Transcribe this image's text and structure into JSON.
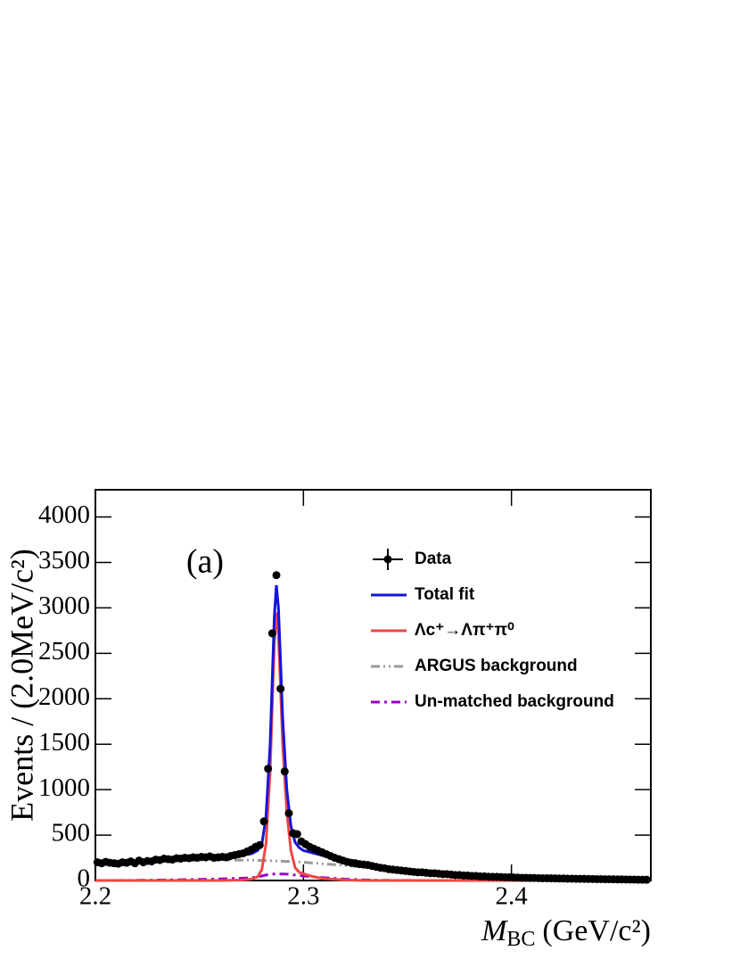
{
  "chart_data": {
    "type": "scatter",
    "annotation": "(a)",
    "y_label": "Events / (2.0MeV/c²)",
    "x_label": {
      "symbol": "M",
      "subscript": "BC",
      "unit": "(GeV/c²)"
    },
    "xlim": [
      2.2,
      2.467
    ],
    "ylim": [
      0,
      4300
    ],
    "xticks": [
      2.2,
      2.3,
      2.4
    ],
    "yticks": [
      0,
      500,
      1000,
      1500,
      2000,
      2500,
      3000,
      3500,
      4000
    ],
    "series": [
      {
        "name": "Data",
        "color": "#000000",
        "style": "points",
        "x": [
          2.201,
          2.203,
          2.205,
          2.207,
          2.209,
          2.211,
          2.213,
          2.215,
          2.217,
          2.219,
          2.221,
          2.223,
          2.225,
          2.227,
          2.229,
          2.231,
          2.233,
          2.235,
          2.237,
          2.239,
          2.241,
          2.243,
          2.245,
          2.247,
          2.249,
          2.251,
          2.253,
          2.255,
          2.257,
          2.259,
          2.261,
          2.263,
          2.265,
          2.267,
          2.269,
          2.271,
          2.273,
          2.275,
          2.277,
          2.279,
          2.281,
          2.283,
          2.285,
          2.287,
          2.289,
          2.291,
          2.293,
          2.295,
          2.297,
          2.299,
          2.301,
          2.303,
          2.305,
          2.307,
          2.309,
          2.311,
          2.313,
          2.315,
          2.317,
          2.319,
          2.321,
          2.323,
          2.325,
          2.327,
          2.329,
          2.331,
          2.333,
          2.335,
          2.337,
          2.339,
          2.341,
          2.343,
          2.345,
          2.347,
          2.349,
          2.351,
          2.353,
          2.355,
          2.357,
          2.359,
          2.361,
          2.363,
          2.365,
          2.367,
          2.369,
          2.371,
          2.373,
          2.375,
          2.377,
          2.379,
          2.381,
          2.383,
          2.385,
          2.387,
          2.389,
          2.391,
          2.393,
          2.395,
          2.397,
          2.399,
          2.401,
          2.403,
          2.405,
          2.407,
          2.409,
          2.411,
          2.413,
          2.415,
          2.417,
          2.419,
          2.421,
          2.423,
          2.425,
          2.427,
          2.429,
          2.431,
          2.433,
          2.435,
          2.437,
          2.439,
          2.441,
          2.443,
          2.445,
          2.447,
          2.449,
          2.451,
          2.453,
          2.455,
          2.457,
          2.459,
          2.461,
          2.463,
          2.465
        ],
        "values": [
          200,
          190,
          205,
          195,
          190,
          185,
          200,
          195,
          210,
          190,
          220,
          200,
          215,
          210,
          230,
          225,
          240,
          235,
          230,
          245,
          240,
          250,
          245,
          255,
          250,
          260,
          255,
          265,
          250,
          255,
          260,
          255,
          270,
          280,
          290,
          300,
          320,
          340,
          370,
          390,
          650,
          1230,
          2720,
          3360,
          2110,
          1200,
          740,
          520,
          510,
          430,
          400,
          370,
          350,
          330,
          310,
          290,
          270,
          250,
          235,
          220,
          205,
          195,
          190,
          180,
          175,
          170,
          160,
          150,
          140,
          135,
          125,
          120,
          115,
          110,
          105,
          100,
          95,
          90,
          90,
          85,
          80,
          80,
          75,
          70,
          70,
          65,
          60,
          60,
          55,
          55,
          50,
          50,
          45,
          45,
          42,
          40,
          40,
          38,
          35,
          35,
          33,
          32,
          30,
          30,
          28,
          28,
          26,
          25,
          25,
          24,
          23,
          22,
          22,
          20,
          20,
          19,
          18,
          18,
          17,
          16,
          15,
          15,
          14,
          14,
          13,
          12,
          12,
          11,
          10,
          10,
          9,
          8,
          8
        ]
      },
      {
        "name": "Total fit",
        "color": "#1414dc",
        "style": "solid",
        "x": [
          2.2,
          2.21,
          2.22,
          2.23,
          2.24,
          2.25,
          2.26,
          2.27,
          2.275,
          2.278,
          2.28,
          2.282,
          2.284,
          2.285,
          2.286,
          2.287,
          2.288,
          2.289,
          2.29,
          2.292,
          2.294,
          2.296,
          2.298,
          2.3,
          2.305,
          2.31,
          2.32,
          2.33,
          2.34,
          2.36,
          2.38,
          2.4,
          2.43,
          2.467
        ],
        "values": [
          195,
          205,
          215,
          230,
          240,
          250,
          260,
          275,
          295,
          330,
          400,
          700,
          1500,
          2200,
          2900,
          3250,
          3000,
          2400,
          1800,
          1000,
          600,
          420,
          360,
          330,
          300,
          270,
          220,
          175,
          140,
          95,
          60,
          35,
          15,
          3
        ]
      },
      {
        "name": "Λc⁺→Λπ⁺π⁰",
        "color": "#f04545",
        "style": "solid",
        "x": [
          2.2,
          2.21,
          2.22,
          2.23,
          2.24,
          2.25,
          2.26,
          2.27,
          2.275,
          2.278,
          2.28,
          2.282,
          2.284,
          2.285,
          2.286,
          2.287,
          2.288,
          2.289,
          2.29,
          2.292,
          2.294,
          2.296,
          2.298,
          2.3,
          2.305,
          2.31,
          2.32,
          2.33,
          2.34,
          2.36,
          2.38,
          2.4,
          2.43,
          2.467
        ],
        "values": [
          0,
          0,
          0,
          0,
          0,
          0,
          0,
          5,
          15,
          40,
          120,
          400,
          1200,
          1900,
          2600,
          2950,
          2700,
          2100,
          1500,
          750,
          330,
          140,
          90,
          75,
          40,
          20,
          5,
          0,
          0,
          0,
          0,
          0,
          0,
          0
        ]
      },
      {
        "name": "ARGUS background",
        "color": "#999999",
        "style": "dashdotdot",
        "x": [
          2.2,
          2.21,
          2.22,
          2.23,
          2.24,
          2.25,
          2.26,
          2.27,
          2.275,
          2.278,
          2.28,
          2.282,
          2.284,
          2.285,
          2.286,
          2.287,
          2.288,
          2.289,
          2.29,
          2.292,
          2.294,
          2.296,
          2.298,
          2.3,
          2.305,
          2.31,
          2.32,
          2.33,
          2.34,
          2.36,
          2.38,
          2.4,
          2.43,
          2.467
        ],
        "values": [
          190,
          200,
          210,
          218,
          222,
          225,
          226,
          225,
          224,
          222,
          221,
          220,
          218,
          217,
          216,
          215,
          214,
          213,
          212,
          210,
          208,
          205,
          203,
          200,
          192,
          183,
          165,
          145,
          125,
          90,
          58,
          32,
          12,
          0
        ]
      },
      {
        "name": "Un-matched background",
        "color": "#9900cc",
        "style": "dashdot",
        "x": [
          2.2,
          2.21,
          2.22,
          2.23,
          2.24,
          2.25,
          2.26,
          2.27,
          2.275,
          2.278,
          2.28,
          2.282,
          2.284,
          2.285,
          2.286,
          2.287,
          2.288,
          2.289,
          2.29,
          2.292,
          2.294,
          2.296,
          2.298,
          2.3,
          2.305,
          2.31,
          2.32,
          2.33,
          2.34,
          2.36,
          2.38,
          2.4,
          2.43,
          2.467
        ],
        "values": [
          0,
          0,
          2,
          5,
          8,
          12,
          18,
          25,
          30,
          40,
          50,
          60,
          68,
          70,
          72,
          72,
          72,
          72,
          72,
          70,
          65,
          60,
          55,
          50,
          40,
          30,
          15,
          6,
          2,
          0,
          0,
          0,
          0,
          0
        ]
      }
    ]
  }
}
